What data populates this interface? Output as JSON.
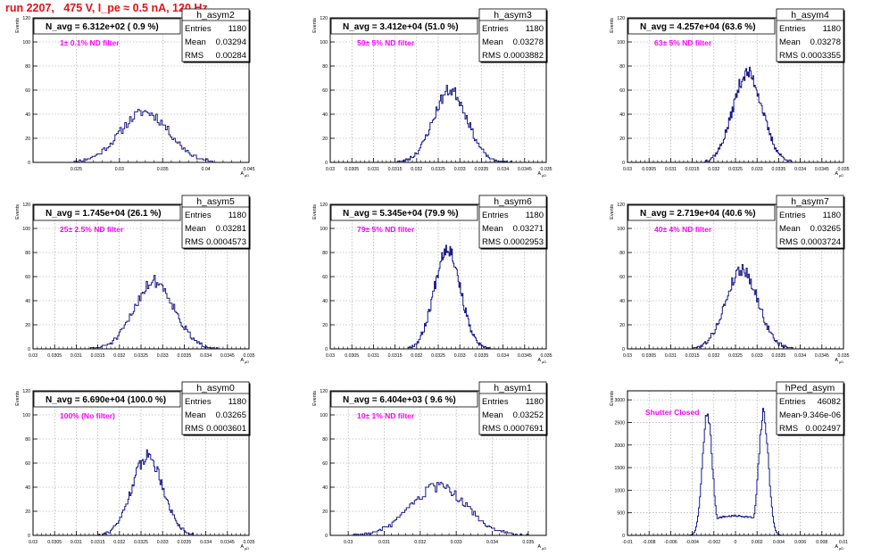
{
  "page_title": "run 2207,   475 V, I_pe ≈ 0.5 nA, 120 Hz",
  "colors": {
    "histogram": "#1a1a8c",
    "annotation": "#ff00ff",
    "title": "#e8101a",
    "grid": "#999999"
  },
  "chart_data": [
    {
      "type": "histogram",
      "hist_name": "h_asym2",
      "stats": {
        "Entries": "1180",
        "Mean": "0.03294",
        "RMS": "0.00284"
      },
      "navg": "N_avg = 6.312e+02 ( 0.9 %)",
      "annotation": "1± 0.1% ND filter",
      "ylabel": "Events",
      "xlabel": "A",
      "xlabel_sub": "μD",
      "xlim": [
        0.02,
        0.045
      ],
      "ylim": [
        0,
        120
      ],
      "xticks": [
        0.025,
        0.03,
        0.035,
        0.04,
        0.045
      ],
      "xtick_labels": [
        "0.025",
        "0.03",
        "0.035",
        "0.04",
        "0.045"
      ],
      "yticks": [
        0,
        20,
        40,
        60,
        80,
        100,
        120
      ],
      "center": 0.03294,
      "sigma": 0.00284,
      "peak": 42,
      "nbins": 90,
      "range": [
        0.024,
        0.041
      ],
      "seed": 11
    },
    {
      "type": "histogram",
      "hist_name": "h_asym3",
      "stats": {
        "Entries": "1180",
        "Mean": "0.03278",
        "RMS": "0.0003882"
      },
      "navg": "N_avg = 3.412e+04 (51.0 %)",
      "annotation": "50± 5% ND filter",
      "ylabel": "Events",
      "xlabel": "A",
      "xlabel_sub": "μD",
      "xlim": [
        0.03,
        0.035
      ],
      "ylim": [
        0,
        120
      ],
      "xticks": [
        0.03,
        0.0305,
        0.031,
        0.0315,
        0.032,
        0.0325,
        0.033,
        0.0335,
        0.034,
        0.0345,
        0.035
      ],
      "xtick_labels": [
        "0.03",
        "0.0305",
        "0.031",
        "0.0315",
        "0.032",
        "0.0325",
        "0.033",
        "0.0335",
        "0.034",
        "0.0345",
        "0.035"
      ],
      "yticks": [
        0,
        20,
        40,
        60,
        80,
        100,
        120
      ],
      "center": 0.03278,
      "sigma": 0.00039,
      "peak": 60,
      "nbins": 100,
      "range": [
        0.0315,
        0.0342
      ],
      "seed": 23
    },
    {
      "type": "histogram",
      "hist_name": "h_asym4",
      "stats": {
        "Entries": "1180",
        "Mean": "0.03278",
        "RMS": "0.0003355"
      },
      "navg": "N_avg = 4.257e+04 (63.6 %)",
      "annotation": "63± 5% ND filter",
      "ylabel": "Events",
      "xlabel": "A",
      "xlabel_sub": "μD",
      "xlim": [
        0.03,
        0.035
      ],
      "ylim": [
        0,
        120
      ],
      "xticks": [
        0.03,
        0.0305,
        0.031,
        0.0315,
        0.032,
        0.0325,
        0.033,
        0.0335,
        0.034,
        0.0345,
        0.035
      ],
      "xtick_labels": [
        "0.03",
        "0.0305",
        "0.031",
        "0.0315",
        "0.032",
        "0.0325",
        "0.033",
        "0.0335",
        "0.034",
        "0.0345",
        "0.035"
      ],
      "yticks": [
        0,
        20,
        40,
        60,
        80,
        100,
        120
      ],
      "center": 0.03278,
      "sigma": 0.00034,
      "peak": 74,
      "nbins": 100,
      "range": [
        0.0318,
        0.0338
      ],
      "seed": 37
    },
    {
      "type": "histogram",
      "hist_name": "h_asym5",
      "stats": {
        "Entries": "1180",
        "Mean": "0.03281",
        "RMS": "0.0004573"
      },
      "navg": "N_avg = 1.745e+04 (26.1 %)",
      "annotation": "25± 2.5% ND filter",
      "ylabel": "Events",
      "xlabel": "A",
      "xlabel_sub": "μD",
      "xlim": [
        0.03,
        0.035
      ],
      "ylim": [
        0,
        120
      ],
      "xticks": [
        0.03,
        0.0305,
        0.031,
        0.0315,
        0.032,
        0.0325,
        0.033,
        0.0335,
        0.034,
        0.0345,
        0.035
      ],
      "xtick_labels": [
        "0.03",
        "0.0305",
        "0.031",
        "0.0315",
        "0.032",
        "0.0325",
        "0.033",
        "0.0335",
        "0.034",
        "0.0345",
        "0.035"
      ],
      "yticks": [
        0,
        20,
        40,
        60,
        80,
        100,
        120
      ],
      "center": 0.03281,
      "sigma": 0.00046,
      "peak": 56,
      "nbins": 100,
      "range": [
        0.0313,
        0.0343
      ],
      "seed": 51
    },
    {
      "type": "histogram",
      "hist_name": "h_asym6",
      "stats": {
        "Entries": "1180",
        "Mean": "0.03271",
        "RMS": "0.0002953"
      },
      "navg": "N_avg = 5.345e+04 (79.9 %)",
      "annotation": "79± 5% ND filter",
      "ylabel": "Events",
      "xlabel": "A",
      "xlabel_sub": "μD",
      "xlim": [
        0.03,
        0.035
      ],
      "ylim": [
        0,
        120
      ],
      "xticks": [
        0.03,
        0.0305,
        0.031,
        0.0315,
        0.032,
        0.0325,
        0.033,
        0.0335,
        0.034,
        0.0345,
        0.035
      ],
      "xtick_labels": [
        "0.03",
        "0.0305",
        "0.031",
        "0.0315",
        "0.032",
        "0.0325",
        "0.033",
        "0.0335",
        "0.034",
        "0.0345",
        "0.035"
      ],
      "yticks": [
        0,
        20,
        40,
        60,
        80,
        100,
        120
      ],
      "center": 0.03271,
      "sigma": 0.0003,
      "peak": 84,
      "nbins": 100,
      "range": [
        0.0318,
        0.0337
      ],
      "seed": 67
    },
    {
      "type": "histogram",
      "hist_name": "h_asym7",
      "stats": {
        "Entries": "1180",
        "Mean": "0.03265",
        "RMS": "0.0003724"
      },
      "navg": "N_avg = 2.719e+04 (40.6 %)",
      "annotation": "40± 4% ND filter",
      "ylabel": "Events",
      "xlabel": "A",
      "xlabel_sub": "μD",
      "xlim": [
        0.03,
        0.035
      ],
      "ylim": [
        0,
        120
      ],
      "xticks": [
        0.03,
        0.0305,
        0.031,
        0.0315,
        0.032,
        0.0325,
        0.033,
        0.0335,
        0.034,
        0.0345,
        0.035
      ],
      "xtick_labels": [
        "0.03",
        "0.0305",
        "0.031",
        "0.0315",
        "0.032",
        "0.0325",
        "0.033",
        "0.0335",
        "0.034",
        "0.0345",
        "0.035"
      ],
      "yticks": [
        0,
        20,
        40,
        60,
        80,
        100,
        120
      ],
      "center": 0.03265,
      "sigma": 0.00037,
      "peak": 66,
      "nbins": 100,
      "range": [
        0.0315,
        0.0339
      ],
      "seed": 79
    },
    {
      "type": "histogram",
      "hist_name": "h_asym0",
      "stats": {
        "Entries": "1180",
        "Mean": "0.03265",
        "RMS": "0.0003601"
      },
      "navg": "N_avg = 6.690e+04 (100.0 %)",
      "annotation": "100% (No filter)",
      "ylabel": "Events",
      "xlabel": "A",
      "xlabel_sub": "μD",
      "xlim": [
        0.03,
        0.035
      ],
      "ylim": [
        0,
        120
      ],
      "xticks": [
        0.03,
        0.0305,
        0.031,
        0.0315,
        0.032,
        0.0325,
        0.033,
        0.0335,
        0.034,
        0.0345,
        0.035
      ],
      "xtick_labels": [
        "0.03",
        "0.0305",
        "0.031",
        "0.0315",
        "0.032",
        "0.0325",
        "0.033",
        "0.0335",
        "0.034",
        "0.0345",
        "0.035"
      ],
      "yticks": [
        0,
        20,
        40,
        60,
        80,
        100,
        120
      ],
      "center": 0.03265,
      "sigma": 0.00036,
      "peak": 66,
      "nbins": 100,
      "range": [
        0.0315,
        0.0339
      ],
      "seed": 91
    },
    {
      "type": "histogram",
      "hist_name": "h_asym1",
      "stats": {
        "Entries": "1180",
        "Mean": "0.03252",
        "RMS": "0.0007691"
      },
      "navg": "N_avg = 6.404e+03 ( 9.6 %)",
      "annotation": "10± 1% ND filter",
      "ylabel": "Events",
      "xlabel": "A",
      "xlabel_sub": "μD",
      "xlim": [
        0.0295,
        0.0355
      ],
      "ylim": [
        0,
        120
      ],
      "xticks": [
        0.03,
        0.031,
        0.032,
        0.033,
        0.034,
        0.035
      ],
      "xtick_labels": [
        "0.03",
        "0.031",
        "0.032",
        "0.033",
        "0.034",
        "0.035"
      ],
      "yticks": [
        0,
        20,
        40,
        60,
        80,
        100,
        120
      ],
      "center": 0.03252,
      "sigma": 0.00077,
      "peak": 40,
      "nbins": 110,
      "range": [
        0.0301,
        0.035
      ],
      "seed": 103
    },
    {
      "type": "histogram",
      "hist_name": "hPed_asym",
      "stats": {
        "Entries": "46082",
        "Mean": "-9.346e-06",
        "RMS": "0.002497"
      },
      "navg": "",
      "annotation": "Shutter Closed",
      "ylabel": "Events",
      "xlabel": "A",
      "xlabel_sub": "μD",
      "xlim": [
        -0.01,
        0.01
      ],
      "ylim": [
        0,
        3200
      ],
      "xticks": [
        -0.01,
        -0.008,
        -0.006,
        -0.004,
        -0.002,
        0,
        0.002,
        0.004,
        0.006,
        0.008,
        0.01
      ],
      "xtick_labels": [
        "-0.01",
        "-0.008",
        "-0.006",
        "-0.004",
        "-0.002",
        "0",
        "0.002",
        "0.004",
        "0.006",
        "0.008",
        "0.01"
      ],
      "yticks": [
        0,
        500,
        1000,
        1500,
        2000,
        2500,
        3000
      ],
      "bimodal": true,
      "peaks": [
        -0.0026,
        0.0026
      ],
      "sigma": 0.00045,
      "peak": 2700,
      "valley": 430,
      "nbins": 100,
      "range": [
        -0.0045,
        0.0045
      ],
      "seed": 7
    }
  ]
}
